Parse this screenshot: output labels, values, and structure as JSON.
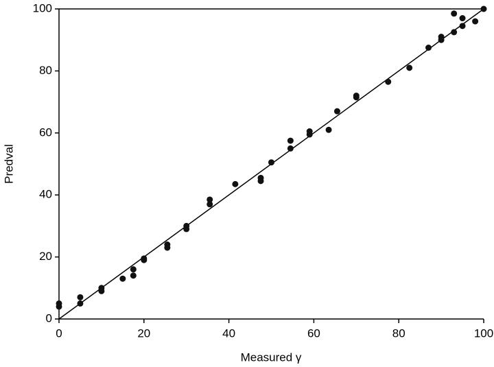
{
  "chart_data": {
    "type": "scatter",
    "x_label": "Measured γ",
    "y_label": "Predval",
    "series": [
      {
        "color": "#111111",
        "x": [
          0,
          0,
          5,
          5,
          10,
          10,
          15,
          17.5,
          17.5,
          20,
          20,
          25.5,
          25.5,
          30,
          30,
          35.5,
          35.5,
          41.5,
          47.5,
          47.5,
          50,
          54.5,
          54.5,
          59,
          59,
          63.5,
          65.5,
          70,
          70,
          77.5,
          82.5,
          87,
          90,
          90,
          93,
          93,
          95,
          95,
          98,
          100
        ],
        "values": [
          5,
          4,
          7,
          5,
          10,
          9,
          13,
          16,
          14,
          19.5,
          19,
          24,
          23,
          30,
          29,
          38.5,
          37,
          43.5,
          45.5,
          44.5,
          50.5,
          57.5,
          55,
          60.5,
          59.5,
          61,
          67,
          72,
          71.5,
          76.5,
          81,
          87.5,
          91,
          90,
          98.5,
          92.5,
          97,
          94.5,
          96,
          100
        ]
      }
    ],
    "reference_line": {
      "x": [
        0,
        100
      ],
      "values": [
        0,
        100
      ]
    },
    "xlim": [
      0,
      100
    ],
    "ylim": [
      0,
      100
    ],
    "xticks": [
      0,
      20,
      40,
      60,
      80,
      100
    ],
    "yticks": [
      0,
      20,
      40,
      60,
      80,
      100
    ]
  }
}
